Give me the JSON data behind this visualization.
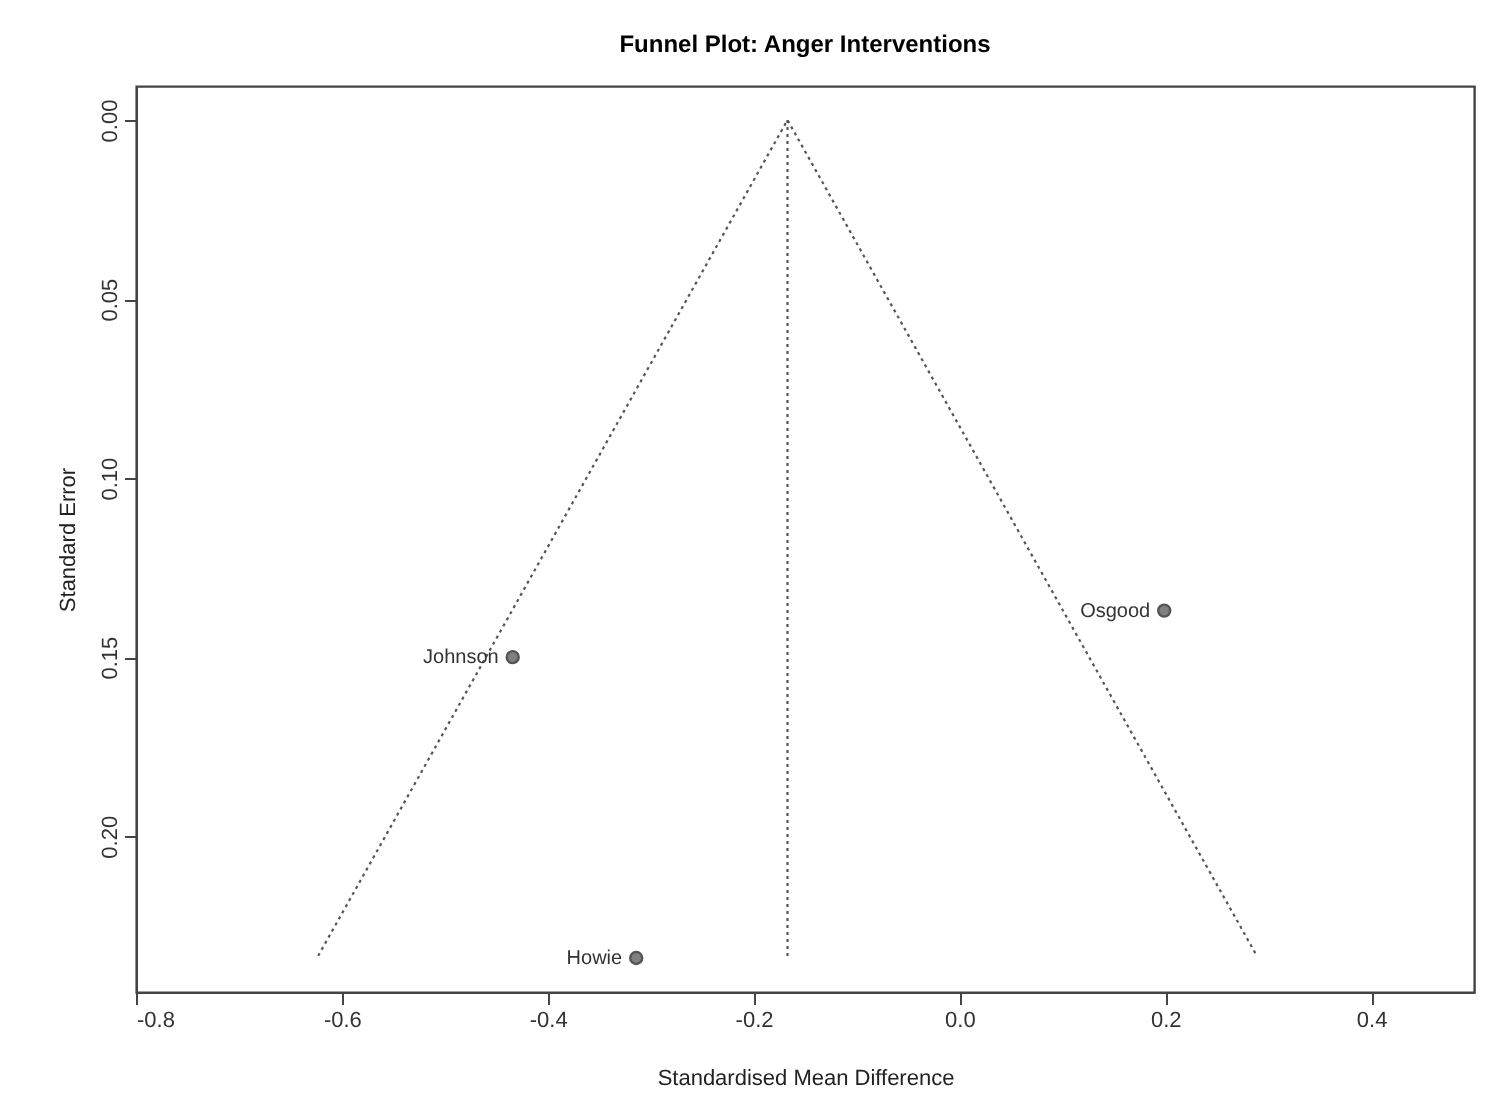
{
  "chart_data": {
    "type": "scatter",
    "title": "Funnel Plot: Anger Interventions",
    "xlabel": "Standardised Mean Difference",
    "ylabel": "Standard Error",
    "xlim": [
      -0.8,
      0.5
    ],
    "ylim": [
      0.2435,
      -0.0095
    ],
    "xticks": [
      -0.8,
      -0.6,
      -0.4,
      -0.2,
      {
        "value": 0,
        "label": "0.0"
      },
      0.2,
      0.4
    ],
    "yticks": [
      {
        "value": 0,
        "label": "0.00"
      },
      0.05,
      {
        "value": 0.1,
        "label": "0.10"
      },
      0.15,
      {
        "value": 0.2,
        "label": "0.20"
      }
    ],
    "grid": false,
    "series": [
      {
        "type": "line",
        "color": "#555555",
        "line_style": "dotted",
        "marker": "none",
        "x": [
          -0.623,
          -0.167,
          0.289
        ],
        "values": [
          0.2334,
          0,
          0.2334
        ]
      },
      {
        "type": "line",
        "color": "#555555",
        "line_style": "dotted",
        "marker": "none",
        "x": [
          -0.167,
          -0.167
        ],
        "values": [
          0,
          0.2344
        ]
      },
      {
        "color": "#808080",
        "marker": "circle",
        "x": [
          -0.434,
          -0.314,
          0.199
        ],
        "values": [
          0.15,
          0.234,
          0.137
        ]
      }
    ],
    "annotations": [
      {
        "text": "Johnson",
        "x": -0.434,
        "y": 0.15
      },
      {
        "text": "Howie",
        "x": -0.314,
        "y": 0.234
      },
      {
        "text": "Osgood",
        "x": 0.199,
        "y": 0.137
      }
    ]
  }
}
